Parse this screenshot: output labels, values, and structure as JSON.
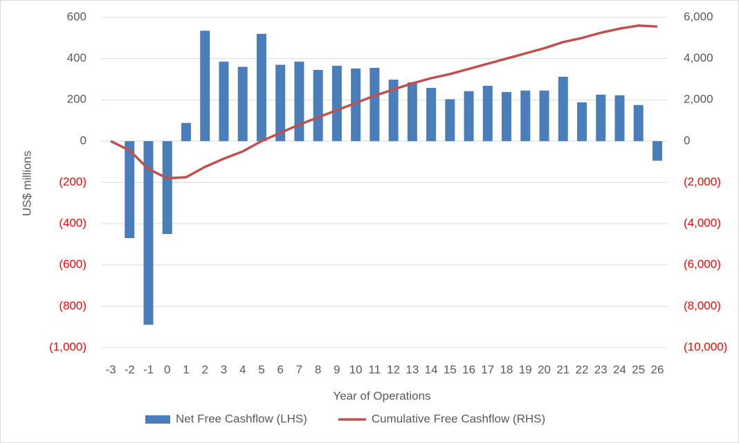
{
  "chart_data": {
    "type": "bar+line",
    "xlabel": "Year of Operations",
    "ylabel": "US$ millions",
    "categories": [
      "-3",
      "-2",
      "-1",
      "0",
      "1",
      "2",
      "3",
      "4",
      "5",
      "6",
      "7",
      "8",
      "9",
      "10",
      "11",
      "12",
      "13",
      "14",
      "15",
      "16",
      "17",
      "18",
      "19",
      "20",
      "21",
      "22",
      "23",
      "24",
      "25",
      "26"
    ],
    "series": [
      {
        "name": "Net Free Cashflow (LHS)",
        "type": "bar",
        "color": "#4a7ebb",
        "values": [
          0,
          -470,
          -890,
          -450,
          88,
          535,
          385,
          360,
          520,
          370,
          385,
          345,
          365,
          352,
          355,
          298,
          285,
          258,
          203,
          242,
          268,
          238,
          245,
          245,
          312,
          188,
          225,
          222,
          175,
          -95
        ]
      },
      {
        "name": "Cumulative Free Cashflow (RHS)",
        "type": "line",
        "axis": "y2",
        "color": "#c0504d",
        "values": [
          0,
          -450,
          -1350,
          -1800,
          -1750,
          -1250,
          -850,
          -500,
          0,
          400,
          800,
          1150,
          1500,
          1850,
          2200,
          2500,
          2800,
          3050,
          3250,
          3500,
          3750,
          4000,
          4250,
          4500,
          4800,
          5000,
          5250,
          5450,
          5600,
          5550
        ]
      }
    ],
    "ylim": [
      -1000,
      600
    ],
    "yticks": [
      {
        "value": -1000,
        "label": "(1,000)"
      },
      {
        "value": -800,
        "label": "(800)"
      },
      {
        "value": -600,
        "label": "(600)"
      },
      {
        "value": -400,
        "label": "(400)"
      },
      {
        "value": -200,
        "label": "(200)"
      },
      0,
      200,
      400,
      600
    ],
    "y2lim": [
      -10000,
      6000
    ],
    "y2ticks": [
      {
        "value": -10000,
        "label": "(10,000)"
      },
      {
        "value": -8000,
        "label": "(8,000)"
      },
      {
        "value": -6000,
        "label": "(6,000)"
      },
      {
        "value": -4000,
        "label": "(4,000)"
      },
      {
        "value": -2000,
        "label": "(2,000)"
      },
      0,
      {
        "value": 2000,
        "label": "2,000"
      },
      {
        "value": 4000,
        "label": "4,000"
      },
      {
        "value": 6000,
        "label": "6,000"
      }
    ],
    "negative_tick_color": "#ff0000",
    "grid": true,
    "legend": "bottom"
  }
}
